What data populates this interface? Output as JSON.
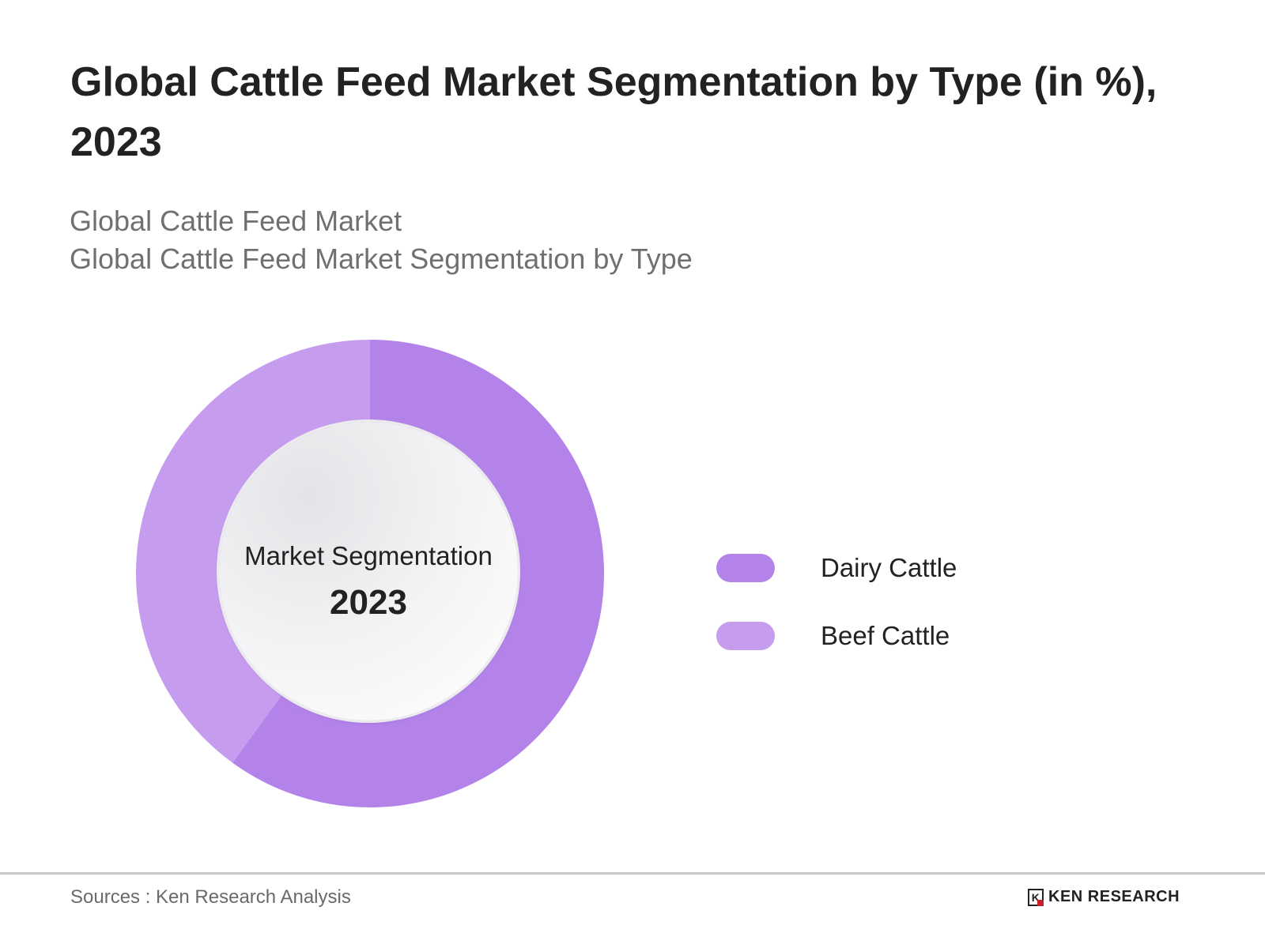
{
  "header": {
    "title": "Global Cattle Feed Market Segmentation by Type (in %), 2023",
    "subtitle_line1": "Global Cattle Feed Market",
    "subtitle_line2": "Global Cattle Feed Market Segmentation by Type"
  },
  "center": {
    "label": "Market Segmentation",
    "year": "2023"
  },
  "legend": [
    {
      "label": "Dairy Cattle",
      "color": "#b383ea"
    },
    {
      "label": "Beef Cattle",
      "color": "#c69cef"
    }
  ],
  "footer": {
    "source": "Sources : Ken Research Analysis",
    "logo_mark": "K",
    "logo_text": "KEN RESEARCH"
  },
  "chart_data": {
    "type": "pie",
    "variant": "donut",
    "title": "Global Cattle Feed Market Segmentation by Type (in %), 2023",
    "subtitle": "Global Cattle Feed Market / Global Cattle Feed Market Segmentation by Type",
    "categories": [
      "Dairy Cattle",
      "Beef Cattle"
    ],
    "values": [
      60,
      40
    ],
    "unit": "%",
    "colors": [
      "#b383ea",
      "#c69cef"
    ],
    "center_text": [
      "Market Segmentation",
      "2023"
    ],
    "legend_position": "right",
    "data_labels": false
  }
}
